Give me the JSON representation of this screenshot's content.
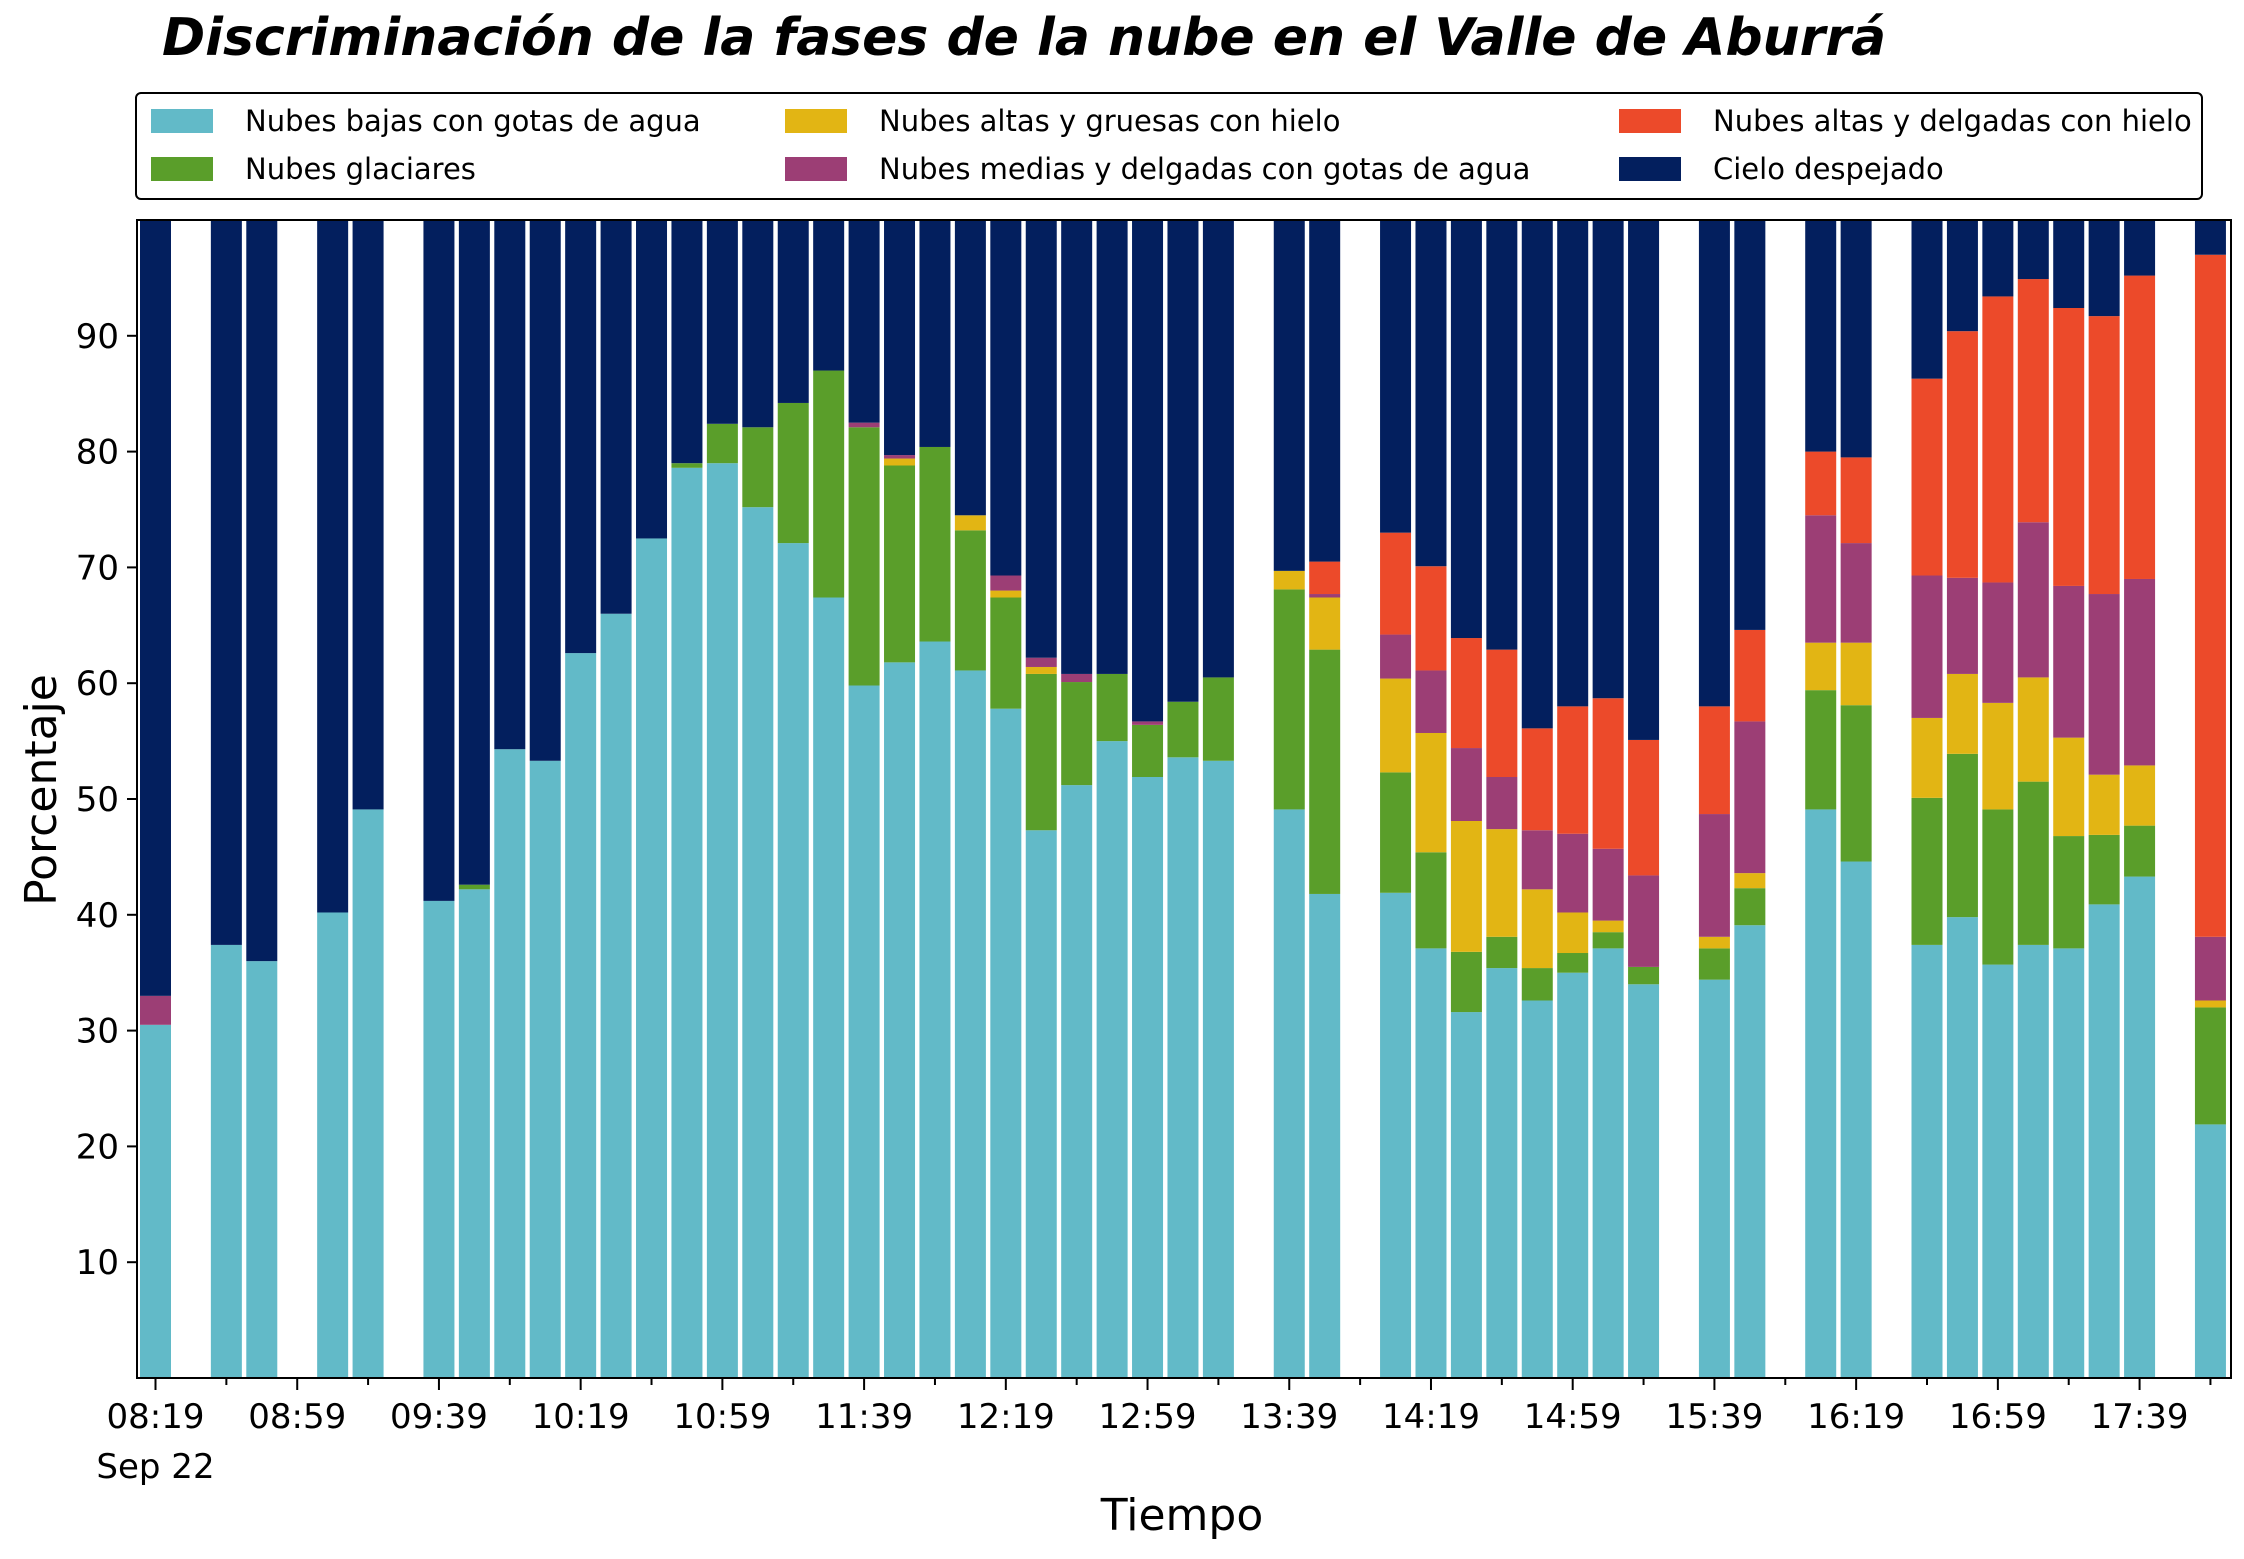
{
  "chart_data": {
    "type": "bar",
    "stacked": true,
    "title": "Discriminación de la fases de la nube en el Valle de Aburrá",
    "xlabel": "Tiempo",
    "ylabel": "Porcentaje",
    "ylim": [
      0,
      100
    ],
    "yticks": [
      10,
      20,
      30,
      40,
      50,
      60,
      70,
      80,
      90
    ],
    "grid": false,
    "legend_position": "top",
    "x_start": "08:19",
    "x_step_minutes": 10,
    "x_slots": 60,
    "xticks": [
      {
        "label": "08:19",
        "sublabel": "Sep 22",
        "slot": 0
      },
      {
        "label": "08:59",
        "slot": 4
      },
      {
        "label": "09:39",
        "slot": 8
      },
      {
        "label": "10:19",
        "slot": 12
      },
      {
        "label": "10:59",
        "slot": 16
      },
      {
        "label": "11:39",
        "slot": 20
      },
      {
        "label": "12:19",
        "slot": 24
      },
      {
        "label": "12:59",
        "slot": 28
      },
      {
        "label": "13:39",
        "slot": 32
      },
      {
        "label": "14:19",
        "slot": 36
      },
      {
        "label": "14:59",
        "slot": 40
      },
      {
        "label": "15:39",
        "slot": 44
      },
      {
        "label": "16:19",
        "slot": 48
      },
      {
        "label": "16:59",
        "slot": 52
      },
      {
        "label": "17:39",
        "slot": 56
      }
    ],
    "series": [
      {
        "name": "Nubes bajas con gotas de agua",
        "color": "#62bac8"
      },
      {
        "name": "Nubes glaciares",
        "color": "#5a9e2a"
      },
      {
        "name": "Nubes altas y gruesas con hielo",
        "color": "#e2b514"
      },
      {
        "name": "Nubes medias y delgadas con gotas de agua",
        "color": "#9c3e75"
      },
      {
        "name": "Nubes altas y delgadas con hielo",
        "color": "#ec4a2a"
      },
      {
        "name": "Cielo despejado",
        "color": "#031f5e"
      }
    ],
    "bars": [
      {
        "slot": 0,
        "values": [
          30.5,
          0,
          0,
          2.5,
          0,
          67
        ]
      },
      {
        "slot": 2,
        "values": [
          37.4,
          0,
          0,
          0,
          0,
          62.6
        ]
      },
      {
        "slot": 3,
        "values": [
          36,
          0,
          0,
          0,
          0,
          64
        ]
      },
      {
        "slot": 5,
        "values": [
          40.2,
          0,
          0,
          0,
          0,
          59.8
        ]
      },
      {
        "slot": 6,
        "values": [
          49.1,
          0,
          0,
          0,
          0,
          50.9
        ]
      },
      {
        "slot": 8,
        "values": [
          41.2,
          0,
          0,
          0,
          0,
          58.8
        ]
      },
      {
        "slot": 9,
        "values": [
          42.2,
          0.4,
          0,
          0,
          0,
          57.4
        ]
      },
      {
        "slot": 10,
        "values": [
          54.3,
          0,
          0,
          0,
          0,
          45.7
        ]
      },
      {
        "slot": 11,
        "values": [
          53.3,
          0,
          0,
          0,
          0,
          46.7
        ]
      },
      {
        "slot": 12,
        "values": [
          62.6,
          0,
          0,
          0,
          0,
          37.4
        ]
      },
      {
        "slot": 13,
        "values": [
          66,
          0,
          0,
          0,
          0,
          34
        ]
      },
      {
        "slot": 14,
        "values": [
          72.5,
          0,
          0,
          0,
          0,
          27.5
        ]
      },
      {
        "slot": 15,
        "values": [
          78.6,
          0.4,
          0,
          0,
          0,
          21
        ]
      },
      {
        "slot": 16,
        "values": [
          79,
          3.4,
          0,
          0,
          0,
          17.6
        ]
      },
      {
        "slot": 17,
        "values": [
          75.2,
          6.9,
          0,
          0,
          0,
          17.9
        ]
      },
      {
        "slot": 18,
        "values": [
          72.1,
          12.1,
          0,
          0,
          0,
          15.8
        ]
      },
      {
        "slot": 19,
        "values": [
          67.4,
          19.6,
          0,
          0,
          0,
          13
        ]
      },
      {
        "slot": 20,
        "values": [
          59.8,
          22.3,
          0,
          0.4,
          0,
          17.5
        ]
      },
      {
        "slot": 21,
        "values": [
          61.8,
          17,
          0.6,
          0.3,
          0,
          20.3
        ]
      },
      {
        "slot": 22,
        "values": [
          63.6,
          16.8,
          0,
          0,
          0,
          19.6
        ]
      },
      {
        "slot": 23,
        "values": [
          61.1,
          12.1,
          1.3,
          0,
          0,
          25.5
        ]
      },
      {
        "slot": 24,
        "values": [
          57.8,
          9.6,
          0.6,
          1.3,
          0,
          30.7
        ]
      },
      {
        "slot": 25,
        "values": [
          47.3,
          13.5,
          0.6,
          0.8,
          0,
          37.8
        ]
      },
      {
        "slot": 26,
        "values": [
          51.2,
          8.9,
          0,
          0.7,
          0,
          39.2
        ]
      },
      {
        "slot": 27,
        "values": [
          55,
          5.8,
          0,
          0,
          0,
          39.2
        ]
      },
      {
        "slot": 28,
        "values": [
          51.9,
          4.5,
          0,
          0.3,
          0,
          43.3
        ]
      },
      {
        "slot": 29,
        "values": [
          53.6,
          4.8,
          0,
          0,
          0,
          41.6
        ]
      },
      {
        "slot": 30,
        "values": [
          53.3,
          7.2,
          0,
          0,
          0,
          39.5
        ]
      },
      {
        "slot": 32,
        "values": [
          49.1,
          19,
          1.6,
          0,
          0,
          30.3
        ]
      },
      {
        "slot": 33,
        "values": [
          41.8,
          21.1,
          4.5,
          0.3,
          2.8,
          29.5
        ]
      },
      {
        "slot": 35,
        "values": [
          41.9,
          10.4,
          8.1,
          3.8,
          8.8,
          27
        ]
      },
      {
        "slot": 36,
        "values": [
          37.1,
          8.3,
          10.3,
          5.4,
          9,
          29.9
        ]
      },
      {
        "slot": 37,
        "values": [
          31.6,
          5.2,
          11.3,
          6.3,
          9.5,
          36.1
        ]
      },
      {
        "slot": 38,
        "values": [
          35.4,
          2.7,
          9.3,
          4.5,
          11,
          37.1
        ]
      },
      {
        "slot": 39,
        "values": [
          32.6,
          2.8,
          6.8,
          5.1,
          8.8,
          43.9
        ]
      },
      {
        "slot": 40,
        "values": [
          35,
          1.7,
          3.5,
          6.8,
          11,
          42
        ]
      },
      {
        "slot": 41,
        "values": [
          37.1,
          1.4,
          1,
          6.2,
          13,
          41.3
        ]
      },
      {
        "slot": 42,
        "values": [
          34,
          1.5,
          0,
          7.9,
          11.7,
          44.9
        ]
      },
      {
        "slot": 44,
        "values": [
          34.4,
          2.7,
          1,
          10.6,
          9.3,
          42
        ]
      },
      {
        "slot": 45,
        "values": [
          39.1,
          3.2,
          1.3,
          13.1,
          7.9,
          35.4
        ]
      },
      {
        "slot": 47,
        "values": [
          49.1,
          10.3,
          4.1,
          11,
          5.5,
          20
        ]
      },
      {
        "slot": 48,
        "values": [
          44.6,
          13.5,
          5.4,
          8.6,
          7.4,
          20.5
        ]
      },
      {
        "slot": 50,
        "values": [
          37.4,
          12.7,
          6.9,
          12.3,
          17,
          13.7
        ]
      },
      {
        "slot": 51,
        "values": [
          39.8,
          14.1,
          6.9,
          8.3,
          21.3,
          9.6
        ]
      },
      {
        "slot": 52,
        "values": [
          35.7,
          13.4,
          9.2,
          10.4,
          24.7,
          6.6
        ]
      },
      {
        "slot": 53,
        "values": [
          37.4,
          14.1,
          9,
          13.4,
          21,
          5.1
        ]
      },
      {
        "slot": 54,
        "values": [
          37.1,
          9.7,
          8.5,
          13.1,
          24,
          7.6
        ]
      },
      {
        "slot": 55,
        "values": [
          40.9,
          6,
          5.2,
          15.6,
          24,
          8.3
        ]
      },
      {
        "slot": 56,
        "values": [
          43.3,
          4.4,
          5.2,
          16.1,
          26.2,
          4.8
        ]
      },
      {
        "slot": 58,
        "values": [
          21.9,
          10.1,
          0.6,
          5.5,
          58.9,
          3
        ]
      }
    ]
  }
}
